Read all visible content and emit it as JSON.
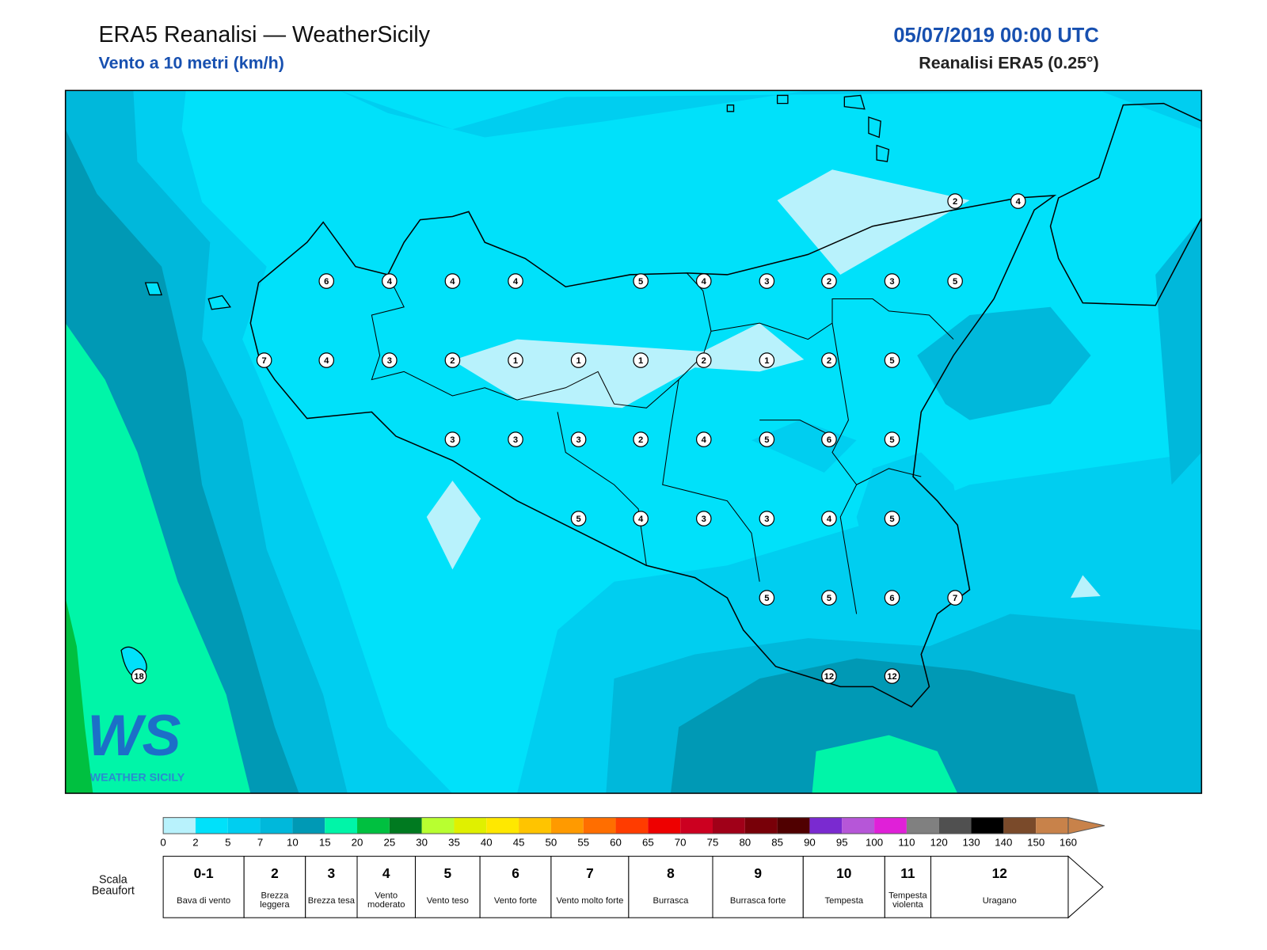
{
  "header": {
    "title": "ERA5 Reanalisi — WeatherSicily",
    "subtitle": "Vento a 10 metri (km/h)",
    "date": "05/07/2019 00:00 UTC",
    "source": "Reanalisi ERA5 (0.25°)"
  },
  "map": {
    "stations": [
      6,
      4,
      4,
      4,
      5,
      4,
      3,
      2,
      3,
      5,
      2,
      4,
      7,
      4,
      3,
      2,
      1,
      1,
      1,
      2,
      1,
      2,
      5,
      3,
      3,
      3,
      2,
      4,
      5,
      6,
      5,
      5,
      4,
      3,
      3,
      4,
      5,
      5,
      5,
      6,
      7,
      12,
      12,
      18
    ]
  },
  "logo": {
    "text": "WS",
    "subtext": "WEATHER SICILY"
  },
  "colorbar": {
    "ticks": [
      0,
      2,
      5,
      7,
      10,
      15,
      20,
      25,
      30,
      35,
      40,
      45,
      50,
      55,
      60,
      65,
      70,
      75,
      80,
      85,
      90,
      95,
      100,
      110,
      120,
      130,
      140,
      150,
      160
    ],
    "colors": [
      "#b8f2fc",
      "#00e1fa",
      "#00cef0",
      "#00b8db",
      "#0099b5",
      "#00f5a8",
      "#00c040",
      "#007a20",
      "#b8ff30",
      "#e0f000",
      "#ffe800",
      "#ffc400",
      "#ff9a00",
      "#ff6e00",
      "#ff3c00",
      "#ee0000",
      "#cc0020",
      "#a00018",
      "#780008",
      "#500000",
      "#7a2ad0",
      "#b656d8",
      "#e020d8",
      "#808080",
      "#505050",
      "#000000",
      "#7a4a2a",
      "#c8824a"
    ]
  },
  "beaufort": {
    "label": "Scala Beaufort",
    "levels": [
      {
        "force": "0-1",
        "name": "Bava di vento"
      },
      {
        "force": "2",
        "name": "Brezza leggera"
      },
      {
        "force": "3",
        "name": "Brezza tesa"
      },
      {
        "force": "4",
        "name": "Vento moderato"
      },
      {
        "force": "5",
        "name": "Vento teso"
      },
      {
        "force": "6",
        "name": "Vento forte"
      },
      {
        "force": "7",
        "name": "Vento molto forte"
      },
      {
        "force": "8",
        "name": "Burrasca"
      },
      {
        "force": "9",
        "name": "Burrasca forte"
      },
      {
        "force": "10",
        "name": "Tempesta"
      },
      {
        "force": "11",
        "name": "Tempesta violenta"
      },
      {
        "force": "12",
        "name": "Uragano"
      }
    ]
  }
}
